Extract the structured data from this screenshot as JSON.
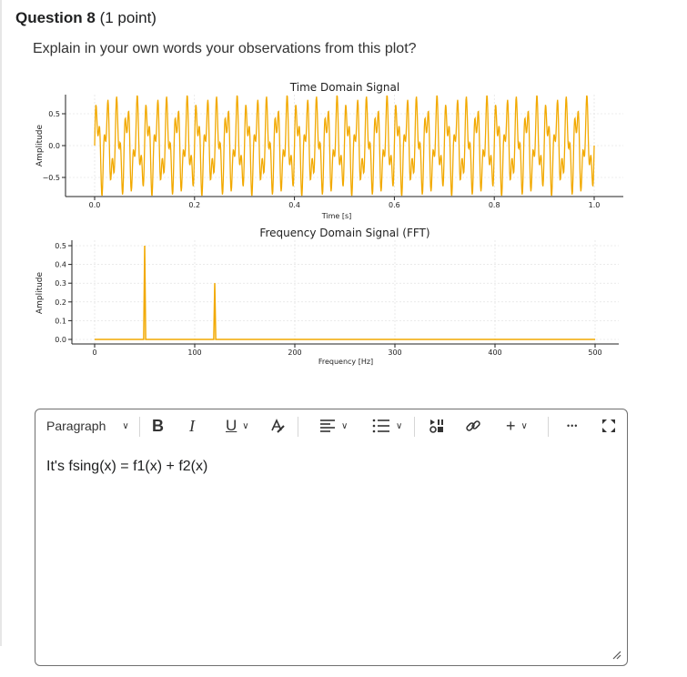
{
  "question": {
    "label": "Question 8",
    "points": "(1 point)",
    "prompt": "Explain in your own words your observations from this plot?"
  },
  "chart_data": [
    {
      "type": "line",
      "title": "Time Domain Signal",
      "xlabel": "Time [s]",
      "ylabel": "Amplitude",
      "xlim": [
        0,
        1.0
      ],
      "ylim": [
        -0.8,
        0.8
      ],
      "xticks": [
        "0.0",
        "0.2",
        "0.4",
        "0.6",
        "0.8",
        "1.0"
      ],
      "yticks": [
        "0.5",
        "0.0",
        "−0.5"
      ],
      "grid": true,
      "color": "#f2a900",
      "series": [
        {
          "components": [
            {
              "freq_hz": 50,
              "amplitude": 0.5
            },
            {
              "freq_hz": 120,
              "amplitude": 0.3
            }
          ]
        }
      ]
    },
    {
      "type": "line",
      "title": "Frequency Domain Signal (FFT)",
      "xlabel": "Frequency [Hz]",
      "ylabel": "Amplitude",
      "xlim": [
        0,
        500
      ],
      "ylim": [
        0,
        0.5
      ],
      "xticks": [
        "0",
        "100",
        "200",
        "300",
        "400",
        "500"
      ],
      "yticks": [
        "0.5",
        "0.4",
        "0.3",
        "0.2",
        "0.1",
        "0.0"
      ],
      "grid": true,
      "color": "#f2a900",
      "x": [
        0,
        49,
        50,
        51,
        119,
        120,
        121,
        500
      ],
      "y": [
        0,
        0,
        0.5,
        0,
        0,
        0.3,
        0,
        0
      ]
    }
  ],
  "editor": {
    "paragraph_label": "Paragraph",
    "bold": "B",
    "italic": "I",
    "underline": "U",
    "insert_label": "+",
    "more": "•••",
    "content": "It's fsing(x) = f1(x) + f2(x)"
  }
}
